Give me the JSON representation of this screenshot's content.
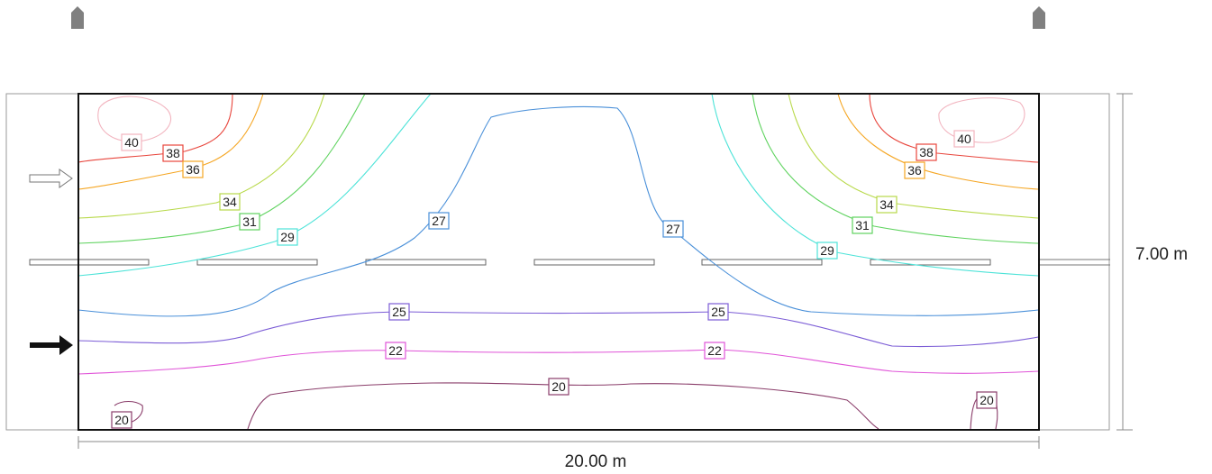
{
  "dimensions": {
    "width_label": "20.00 m",
    "height_label": "7.00 m"
  },
  "colors": {
    "40": "#f2b4bf",
    "38": "#e8453c",
    "36": "#f5a623",
    "34": "#b8d94a",
    "31": "#5fd35f",
    "29": "#4de3d8",
    "27": "#4a90d9",
    "25": "#7b5cd6",
    "22": "#e054d8",
    "20": "#8a3d6a"
  },
  "contours": [
    {
      "level": "40",
      "labels": [
        {
          "text": "40"
        },
        {
          "text": "40"
        }
      ]
    },
    {
      "level": "38",
      "labels": [
        {
          "text": "38"
        },
        {
          "text": "38"
        }
      ]
    },
    {
      "level": "36",
      "labels": [
        {
          "text": "36"
        },
        {
          "text": "36"
        }
      ]
    },
    {
      "level": "34",
      "labels": [
        {
          "text": "34"
        },
        {
          "text": "34"
        }
      ]
    },
    {
      "level": "31",
      "labels": [
        {
          "text": "31"
        },
        {
          "text": "31"
        }
      ]
    },
    {
      "level": "29",
      "labels": [
        {
          "text": "29"
        },
        {
          "text": "29"
        }
      ]
    },
    {
      "level": "27",
      "labels": [
        {
          "text": "27"
        },
        {
          "text": "27"
        }
      ]
    },
    {
      "level": "25",
      "labels": [
        {
          "text": "25"
        },
        {
          "text": "25"
        }
      ]
    },
    {
      "level": "22",
      "labels": [
        {
          "text": "22"
        },
        {
          "text": "22"
        }
      ]
    },
    {
      "level": "20",
      "labels": [
        {
          "text": "20"
        },
        {
          "text": "20"
        },
        {
          "text": "20"
        }
      ]
    }
  ]
}
